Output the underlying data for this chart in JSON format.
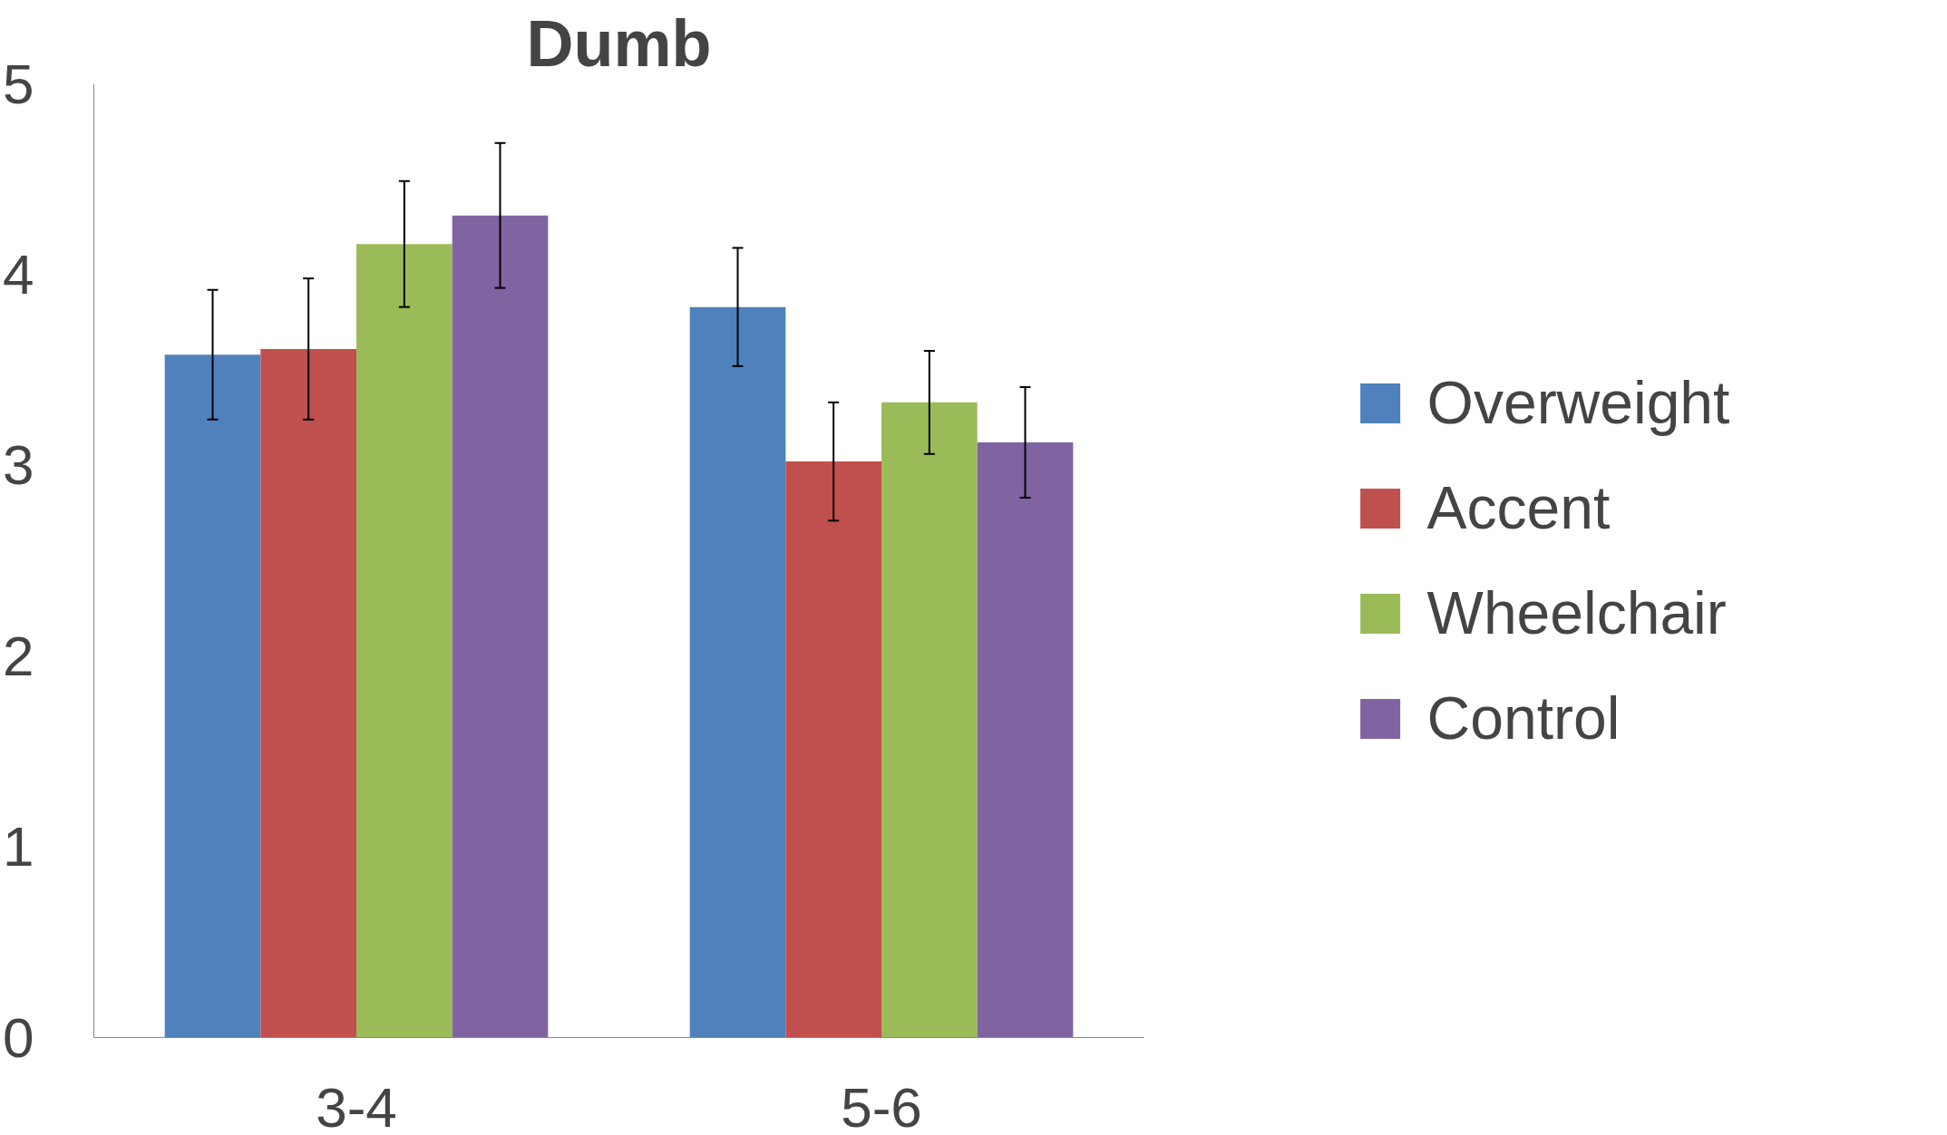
{
  "chart_data": {
    "type": "bar",
    "title": "Dumb",
    "categories": [
      "3-4",
      "5-6"
    ],
    "series": [
      {
        "name": "Overweight",
        "color": "#4f81bd",
        "values": [
          3.58,
          3.83
        ],
        "errors": [
          0.34,
          0.31
        ]
      },
      {
        "name": "Accent",
        "color": "#c0504d",
        "values": [
          3.61,
          3.02
        ],
        "errors": [
          0.37,
          0.31
        ]
      },
      {
        "name": "Wheelchair",
        "color": "#9bbb59",
        "values": [
          4.16,
          3.33
        ],
        "errors": [
          0.33,
          0.27
        ]
      },
      {
        "name": "Control",
        "color": "#8064a2",
        "values": [
          4.31,
          3.12
        ],
        "errors": [
          0.38,
          0.29
        ]
      }
    ],
    "ylim": [
      0,
      5
    ],
    "yticks": [
      0,
      1,
      2,
      3,
      4,
      5
    ],
    "grid": false,
    "legend": "right"
  }
}
